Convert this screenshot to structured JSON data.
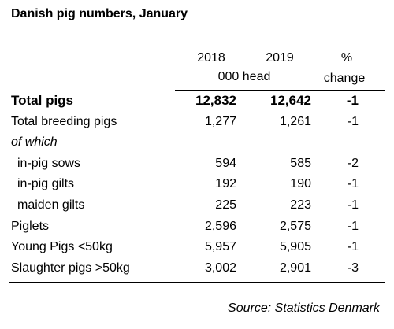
{
  "title": "Danish pig numbers, January",
  "table": {
    "header": [
      "2018",
      "2019",
      "%"
    ],
    "subheader": [
      "000 head",
      "change"
    ],
    "rows": [
      [
        "Total pigs",
        "12,832",
        "12,642",
        "-1"
      ],
      [
        "Total breeding pigs",
        "1,277",
        "1,261",
        "-1"
      ],
      [
        "of which"
      ],
      [
        "in-pig sows",
        "594",
        "585",
        "-2"
      ],
      [
        "in-pig gilts",
        "192",
        "190",
        "-1"
      ],
      [
        "maiden gilts",
        "225",
        "223",
        "-1"
      ],
      [
        "Piglets",
        "2,596",
        "2,575",
        "-1"
      ],
      [
        "Young Pigs <50kg",
        "5,957",
        "5,905",
        "-1"
      ],
      [
        "Slaughter pigs >50kg",
        "3,002",
        "2,901",
        "-3"
      ]
    ]
  },
  "source": "Source: Statistics Denmark"
}
